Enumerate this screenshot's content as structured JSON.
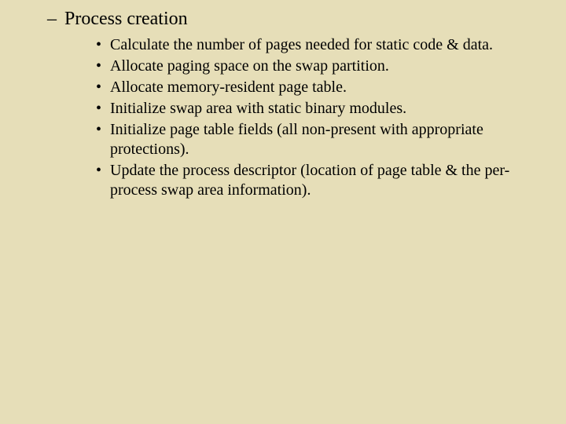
{
  "slide": {
    "background_color": "#e6deb8",
    "text_color": "#000000",
    "font_family": "Times New Roman, Times, serif",
    "heading": {
      "dash": "–",
      "text": "Process creation",
      "fontsize_pt": 24
    },
    "bullets": {
      "marker": "•",
      "fontsize_pt": 20,
      "items": [
        "Calculate the number of pages needed for static code & data.",
        "Allocate paging space on the swap partition.",
        "Allocate memory-resident page table.",
        "Initialize swap area with static binary modules.",
        "Initialize page table fields (all non-present with appropriate protections).",
        "Update the process descriptor (location of page table & the per-process swap area information)."
      ]
    }
  }
}
